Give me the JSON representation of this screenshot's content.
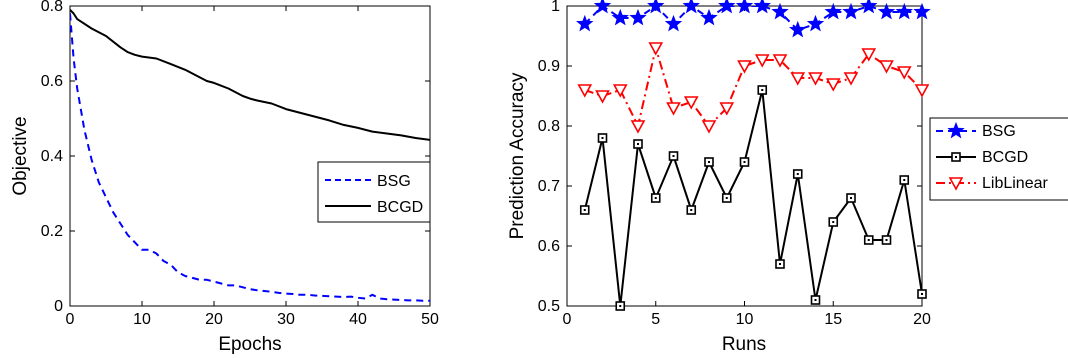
{
  "chart_data": [
    {
      "type": "line",
      "title": "",
      "xlabel": "Epochs",
      "ylabel": "Objective",
      "xlim": [
        0,
        50
      ],
      "ylim": [
        0,
        0.8
      ],
      "xticks": [
        "0",
        "10",
        "20",
        "30",
        "40",
        "50"
      ],
      "yticks": [
        "0",
        "0.2",
        "0.4",
        "0.6",
        "0.8"
      ],
      "grid": false,
      "legend_position": "center-right",
      "series": [
        {
          "name": "BSG",
          "color": "#0000ff",
          "style": "dashed",
          "x": [
            0,
            0.5,
            1,
            2,
            3,
            4,
            5,
            6,
            7,
            8,
            9,
            10,
            11,
            12,
            13,
            14,
            15,
            16,
            17,
            18,
            19,
            20,
            21,
            22,
            23,
            24,
            25,
            26,
            27,
            28,
            29,
            30,
            31,
            32,
            33,
            34,
            35,
            36,
            37,
            38,
            39,
            40,
            41,
            42,
            43,
            44,
            45,
            46,
            47,
            48,
            49,
            50
          ],
          "y": [
            0.78,
            0.66,
            0.58,
            0.47,
            0.39,
            0.33,
            0.29,
            0.25,
            0.22,
            0.19,
            0.17,
            0.15,
            0.15,
            0.14,
            0.12,
            0.11,
            0.09,
            0.08,
            0.075,
            0.07,
            0.07,
            0.065,
            0.06,
            0.055,
            0.055,
            0.05,
            0.045,
            0.042,
            0.04,
            0.038,
            0.035,
            0.033,
            0.032,
            0.03,
            0.03,
            0.028,
            0.027,
            0.026,
            0.025,
            0.024,
            0.025,
            0.022,
            0.02,
            0.03,
            0.02,
            0.018,
            0.017,
            0.016,
            0.015,
            0.015,
            0.014,
            0.014
          ]
        },
        {
          "name": "BCGD",
          "color": "#000000",
          "style": "solid",
          "x": [
            0,
            0.5,
            1,
            3,
            5,
            7,
            8,
            9,
            10,
            12,
            14,
            16,
            18,
            19,
            20,
            22,
            24,
            25,
            26,
            28,
            30,
            32,
            34,
            36,
            38,
            40,
            42,
            44,
            46,
            48,
            50
          ],
          "y": [
            0.79,
            0.78,
            0.765,
            0.74,
            0.72,
            0.69,
            0.677,
            0.67,
            0.665,
            0.66,
            0.645,
            0.63,
            0.61,
            0.6,
            0.595,
            0.58,
            0.56,
            0.553,
            0.548,
            0.54,
            0.525,
            0.515,
            0.505,
            0.495,
            0.483,
            0.475,
            0.465,
            0.46,
            0.455,
            0.448,
            0.443
          ]
        }
      ]
    },
    {
      "type": "line",
      "title": "",
      "xlabel": "Runs",
      "ylabel": "Prediction Accuracy",
      "xlim": [
        0,
        20
      ],
      "ylim": [
        0.5,
        1.0
      ],
      "xticks": [
        "0",
        "5",
        "10",
        "15",
        "20"
      ],
      "yticks": [
        "0.5",
        "0.6",
        "0.7",
        "0.8",
        "0.9",
        "1"
      ],
      "grid": false,
      "legend_position": "outside-right",
      "series": [
        {
          "name": "BSG",
          "color": "#0000ff",
          "style": "dashed",
          "marker": "star",
          "x": [
            1,
            2,
            3,
            4,
            5,
            6,
            7,
            8,
            9,
            10,
            11,
            12,
            13,
            14,
            15,
            16,
            17,
            18,
            19,
            20
          ],
          "y": [
            0.97,
            1.0,
            0.98,
            0.98,
            1.0,
            0.97,
            1.0,
            0.98,
            1.0,
            1.0,
            1.0,
            0.99,
            0.96,
            0.97,
            0.99,
            0.99,
            1.0,
            0.99,
            0.99,
            0.99
          ]
        },
        {
          "name": "BCGD",
          "color": "#000000",
          "style": "solid",
          "marker": "square",
          "x": [
            1,
            2,
            3,
            4,
            5,
            6,
            7,
            8,
            9,
            10,
            11,
            12,
            13,
            14,
            15,
            16,
            17,
            18,
            19,
            20
          ],
          "y": [
            0.66,
            0.78,
            0.5,
            0.77,
            0.68,
            0.75,
            0.66,
            0.74,
            0.68,
            0.74,
            0.86,
            0.57,
            0.72,
            0.51,
            0.64,
            0.68,
            0.61,
            0.61,
            0.71,
            0.52
          ]
        },
        {
          "name": "LibLinear",
          "color": "#ff0000",
          "style": "dashdot",
          "marker": "triangle-down",
          "x": [
            1,
            2,
            3,
            4,
            5,
            6,
            7,
            8,
            9,
            10,
            11,
            12,
            13,
            14,
            15,
            16,
            17,
            18,
            19,
            20
          ],
          "y": [
            0.86,
            0.85,
            0.86,
            0.8,
            0.93,
            0.83,
            0.84,
            0.8,
            0.83,
            0.9,
            0.91,
            0.91,
            0.88,
            0.88,
            0.87,
            0.88,
            0.92,
            0.9,
            0.89,
            0.86
          ]
        }
      ]
    }
  ]
}
